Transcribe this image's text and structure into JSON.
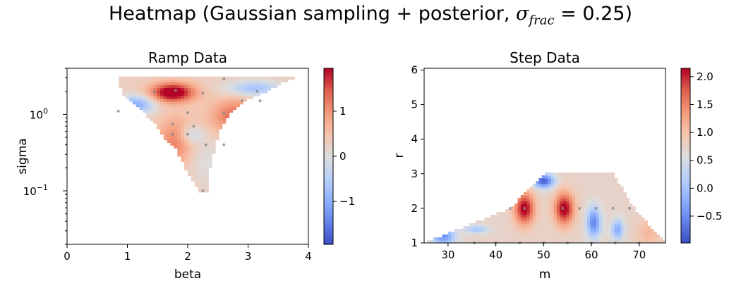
{
  "figure": {
    "title_prefix": "Heatmap (Gaussian sampling + posterior, ",
    "title_sigma": "σ",
    "title_sub": "frac",
    "title_suffix": " = 0.25)"
  },
  "colormap": [
    "#3b4cc0",
    "#6282ea",
    "#8db0fe",
    "#b9d0f9",
    "#dddddd",
    "#f5c4ad",
    "#f49a7b",
    "#de604d",
    "#b40426"
  ],
  "chart_data": [
    {
      "type": "heatmap",
      "title": "Ramp Data",
      "xlabel": "beta",
      "ylabel": "sigma",
      "xlim": [
        0,
        4
      ],
      "ylim": [
        0.02,
        4
      ],
      "yscale": "log",
      "x_ticks": [
        "0",
        "1",
        "2",
        "3",
        "4"
      ],
      "y_ticks": [
        {
          "v": 0.1,
          "label": "10",
          "exp": "−1"
        },
        {
          "v": 1,
          "label": "10",
          "exp": "0"
        }
      ],
      "colorbar": {
        "vmin": -1.95,
        "vmax": 1.95,
        "ticks": [
          "−1",
          "0",
          "1"
        ],
        "tick_values": [
          -1,
          0,
          1
        ]
      },
      "region_bounds": [
        [
          3.0,
          0.87,
          3.75
        ],
        [
          2.5,
          0.87,
          3.55
        ],
        [
          2.0,
          0.9,
          3.3
        ],
        [
          1.6,
          1.0,
          3.0
        ],
        [
          1.2,
          1.2,
          2.8
        ],
        [
          1.0,
          1.3,
          2.7
        ],
        [
          0.7,
          1.5,
          2.55
        ],
        [
          0.5,
          1.6,
          2.5
        ],
        [
          0.35,
          1.8,
          2.45
        ],
        [
          0.25,
          1.9,
          2.4
        ],
        [
          0.17,
          2.0,
          2.35
        ],
        [
          0.13,
          2.1,
          2.35
        ],
        [
          0.1,
          2.2,
          2.35
        ]
      ],
      "values_hint": "coolwarm posterior mean",
      "samples": [
        [
          1.45,
          2.0
        ],
        [
          1.8,
          2.05
        ],
        [
          2.25,
          1.9
        ],
        [
          2.6,
          2.9
        ],
        [
          3.15,
          2.0
        ],
        [
          0.85,
          1.1
        ],
        [
          2.0,
          1.05
        ],
        [
          2.6,
          1.05
        ],
        [
          2.9,
          1.5
        ],
        [
          3.2,
          1.5
        ],
        [
          1.75,
          0.75
        ],
        [
          2.1,
          0.7
        ],
        [
          1.75,
          0.55
        ],
        [
          2.0,
          0.55
        ],
        [
          2.3,
          0.4
        ],
        [
          2.6,
          0.4
        ],
        [
          2.25,
          0.1
        ]
      ]
    },
    {
      "type": "heatmap",
      "title": "Step Data",
      "xlabel": "m",
      "ylabel": "r",
      "xlim": [
        25,
        75.5
      ],
      "ylim": [
        1,
        6.05
      ],
      "x_ticks": [
        "30",
        "40",
        "50",
        "60",
        "70"
      ],
      "x_tick_values": [
        30,
        40,
        50,
        60,
        70
      ],
      "y_ticks": [
        "1",
        "2",
        "3",
        "4",
        "5",
        "6"
      ],
      "y_tick_values": [
        1,
        2,
        3,
        4,
        5,
        6
      ],
      "colorbar": {
        "vmin": -0.98,
        "vmax": 2.15,
        "ticks": [
          "−0.5",
          "0.0",
          "0.5",
          "1.0",
          "1.5",
          "2.0"
        ],
        "tick_values": [
          -0.5,
          0,
          0.5,
          1,
          1.5,
          2
        ]
      },
      "samples": [
        [
          43,
          2
        ],
        [
          46,
          2
        ],
        [
          54,
          2
        ],
        [
          57.5,
          2
        ],
        [
          61,
          2
        ],
        [
          64.5,
          2
        ],
        [
          68,
          2
        ],
        [
          35.5,
          1
        ],
        [
          40,
          1
        ],
        [
          45,
          1
        ],
        [
          50,
          1
        ],
        [
          55,
          1
        ],
        [
          60,
          1
        ],
        [
          65,
          1
        ],
        [
          70,
          1
        ]
      ]
    }
  ]
}
